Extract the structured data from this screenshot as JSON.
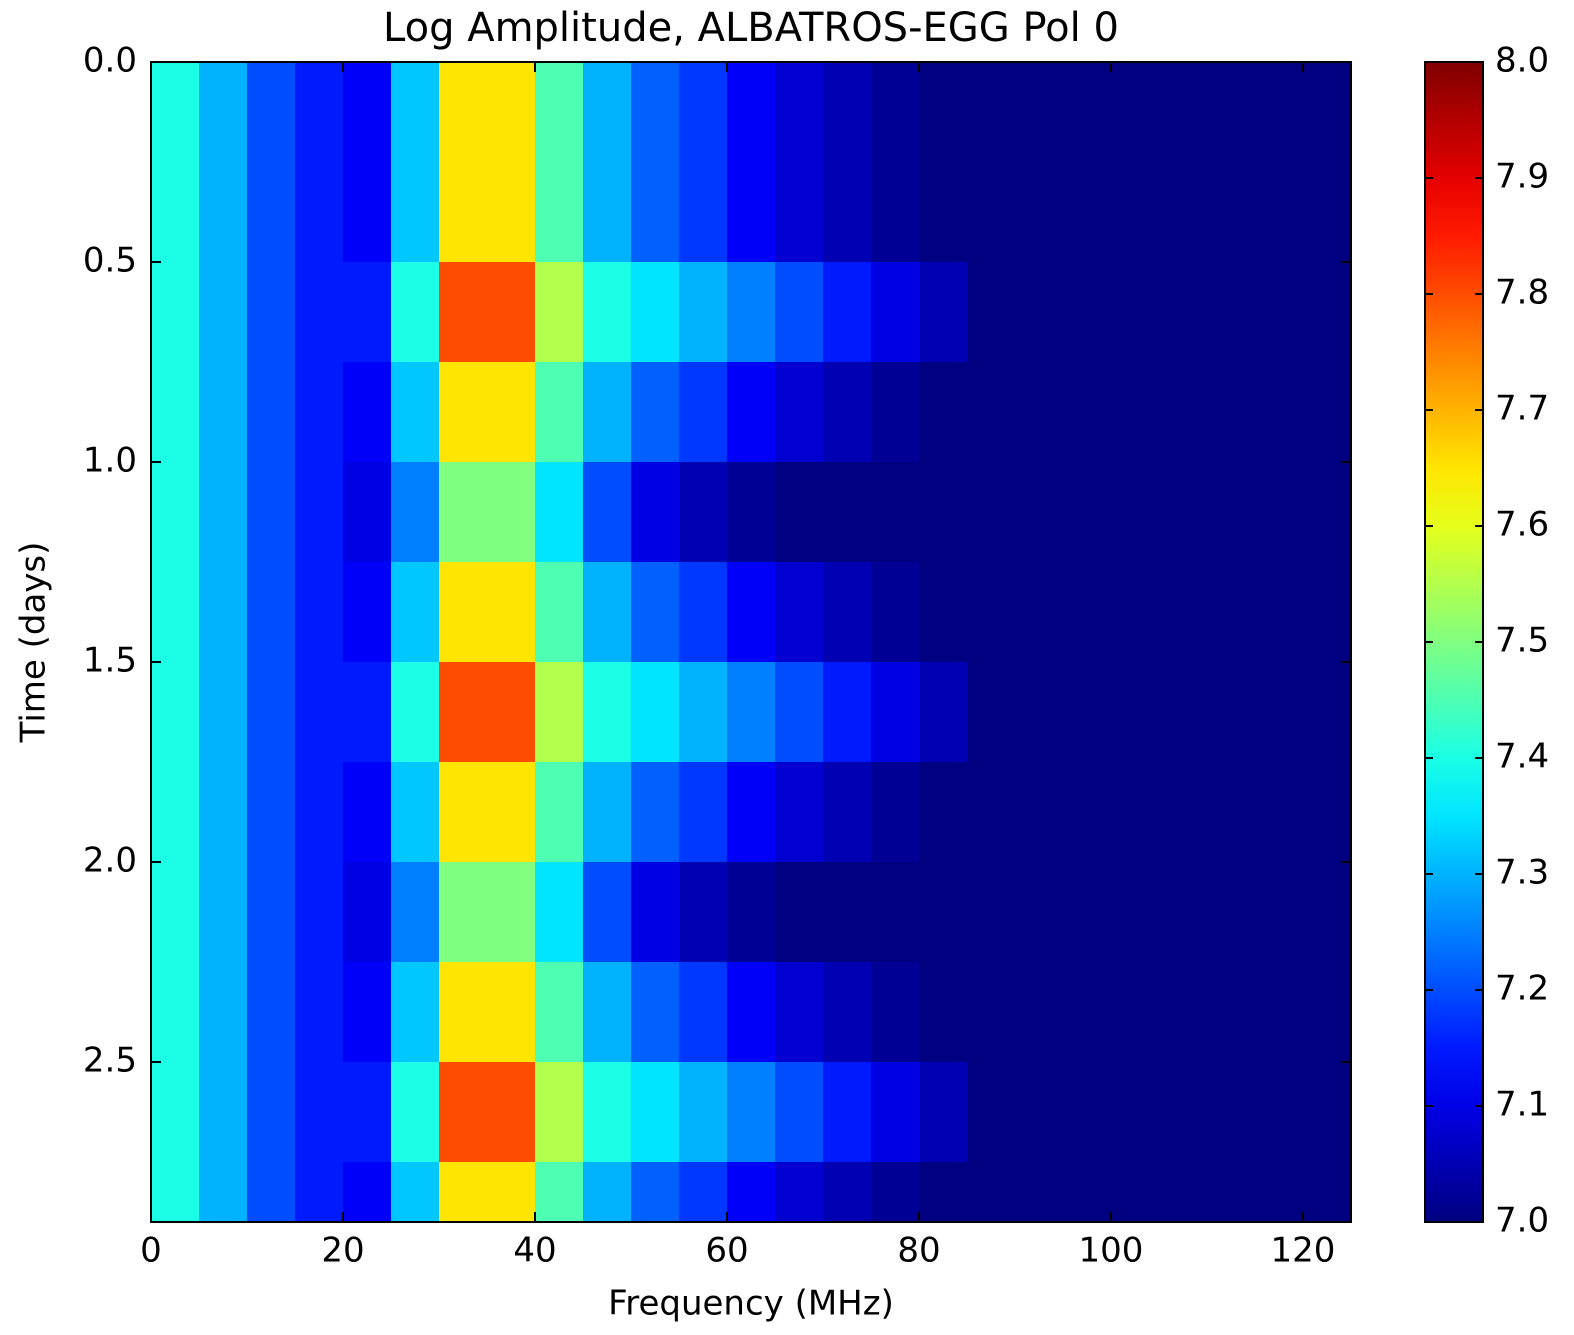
{
  "chart_data": {
    "type": "heatmap",
    "title": "Log Amplitude, ALBATROS-EGG Pol 0",
    "x_label": "Frequency (MHz)",
    "y_label": "Time (days)",
    "colormap": "jet",
    "clim": [
      7.0,
      8.0
    ],
    "xlim": [
      0,
      125
    ],
    "ylim": [
      2.9,
      0
    ],
    "xticks": [
      0,
      20,
      40,
      60,
      80,
      100,
      120
    ],
    "yticks": [
      {
        "value": 0,
        "label": "0.0"
      },
      0.5,
      {
        "value": 1,
        "label": "1.0"
      },
      1.5,
      {
        "value": 2,
        "label": "2.0"
      },
      2.5
    ],
    "colorbar_ticks": [
      {
        "value": 7,
        "label": "7.0"
      },
      7.1,
      7.2,
      7.3,
      7.4,
      7.5,
      7.6,
      7.7,
      7.8,
      7.9,
      {
        "value": 8,
        "label": "8.0"
      }
    ],
    "x_edges": [
      0,
      5,
      10,
      15,
      20,
      25,
      30,
      35,
      40,
      45,
      50,
      55,
      60,
      65,
      70,
      75,
      80,
      85,
      90,
      95,
      100,
      105,
      110,
      115,
      120,
      125
    ],
    "y_edges": [
      0,
      0.25,
      0.5,
      0.75,
      1,
      1.25,
      1.5,
      1.75,
      2,
      2.25,
      2.5,
      2.75,
      2.9
    ],
    "z": [
      [
        7.4,
        7.3,
        7.2,
        7.15,
        7.12,
        7.32,
        7.65,
        7.65,
        7.45,
        7.3,
        7.22,
        7.18,
        7.12,
        7.08,
        7.05,
        7.02,
        7.0,
        7.0,
        7.0,
        7.0,
        7.0,
        7.0,
        7.0,
        7.0,
        7.0
      ],
      [
        7.4,
        7.3,
        7.2,
        7.15,
        7.12,
        7.32,
        7.65,
        7.65,
        7.45,
        7.3,
        7.22,
        7.18,
        7.12,
        7.08,
        7.05,
        7.02,
        7.0,
        7.0,
        7.0,
        7.0,
        7.0,
        7.0,
        7.0,
        7.0,
        7.0
      ],
      [
        7.4,
        7.3,
        7.2,
        7.15,
        7.15,
        7.4,
        7.8,
        7.8,
        7.55,
        7.4,
        7.35,
        7.3,
        7.25,
        7.2,
        7.15,
        7.1,
        7.05,
        7.0,
        7.0,
        7.0,
        7.0,
        7.0,
        7.0,
        7.0,
        7.0
      ],
      [
        7.4,
        7.3,
        7.2,
        7.15,
        7.12,
        7.32,
        7.65,
        7.65,
        7.45,
        7.3,
        7.22,
        7.18,
        7.12,
        7.08,
        7.05,
        7.02,
        7.0,
        7.0,
        7.0,
        7.0,
        7.0,
        7.0,
        7.0,
        7.0,
        7.0
      ],
      [
        7.4,
        7.3,
        7.2,
        7.15,
        7.1,
        7.25,
        7.5,
        7.5,
        7.35,
        7.2,
        7.1,
        7.05,
        7.02,
        7.0,
        7.0,
        7.0,
        7.0,
        7.0,
        7.0,
        7.0,
        7.0,
        7.0,
        7.0,
        7.0,
        7.0
      ],
      [
        7.4,
        7.3,
        7.2,
        7.15,
        7.12,
        7.32,
        7.65,
        7.65,
        7.45,
        7.3,
        7.22,
        7.18,
        7.12,
        7.08,
        7.05,
        7.02,
        7.0,
        7.0,
        7.0,
        7.0,
        7.0,
        7.0,
        7.0,
        7.0,
        7.0
      ],
      [
        7.4,
        7.3,
        7.2,
        7.15,
        7.15,
        7.4,
        7.8,
        7.8,
        7.55,
        7.4,
        7.35,
        7.3,
        7.25,
        7.2,
        7.15,
        7.1,
        7.05,
        7.0,
        7.0,
        7.0,
        7.0,
        7.0,
        7.0,
        7.0,
        7.0
      ],
      [
        7.4,
        7.3,
        7.2,
        7.15,
        7.12,
        7.32,
        7.65,
        7.65,
        7.45,
        7.3,
        7.22,
        7.18,
        7.12,
        7.08,
        7.05,
        7.02,
        7.0,
        7.0,
        7.0,
        7.0,
        7.0,
        7.0,
        7.0,
        7.0,
        7.0
      ],
      [
        7.4,
        7.3,
        7.2,
        7.15,
        7.1,
        7.25,
        7.5,
        7.5,
        7.35,
        7.2,
        7.1,
        7.05,
        7.02,
        7.0,
        7.0,
        7.0,
        7.0,
        7.0,
        7.0,
        7.0,
        7.0,
        7.0,
        7.0,
        7.0,
        7.0
      ],
      [
        7.4,
        7.3,
        7.2,
        7.15,
        7.12,
        7.32,
        7.65,
        7.65,
        7.45,
        7.3,
        7.22,
        7.18,
        7.12,
        7.08,
        7.05,
        7.02,
        7.0,
        7.0,
        7.0,
        7.0,
        7.0,
        7.0,
        7.0,
        7.0,
        7.0
      ],
      [
        7.4,
        7.3,
        7.2,
        7.15,
        7.15,
        7.4,
        7.8,
        7.8,
        7.55,
        7.4,
        7.35,
        7.3,
        7.25,
        7.2,
        7.15,
        7.1,
        7.05,
        7.0,
        7.0,
        7.0,
        7.0,
        7.0,
        7.0,
        7.0,
        7.0
      ],
      [
        7.4,
        7.3,
        7.2,
        7.15,
        7.12,
        7.32,
        7.65,
        7.65,
        7.45,
        7.3,
        7.22,
        7.18,
        7.12,
        7.08,
        7.05,
        7.02,
        7.0,
        7.0,
        7.0,
        7.0,
        7.0,
        7.0,
        7.0,
        7.0,
        7.0
      ]
    ]
  }
}
